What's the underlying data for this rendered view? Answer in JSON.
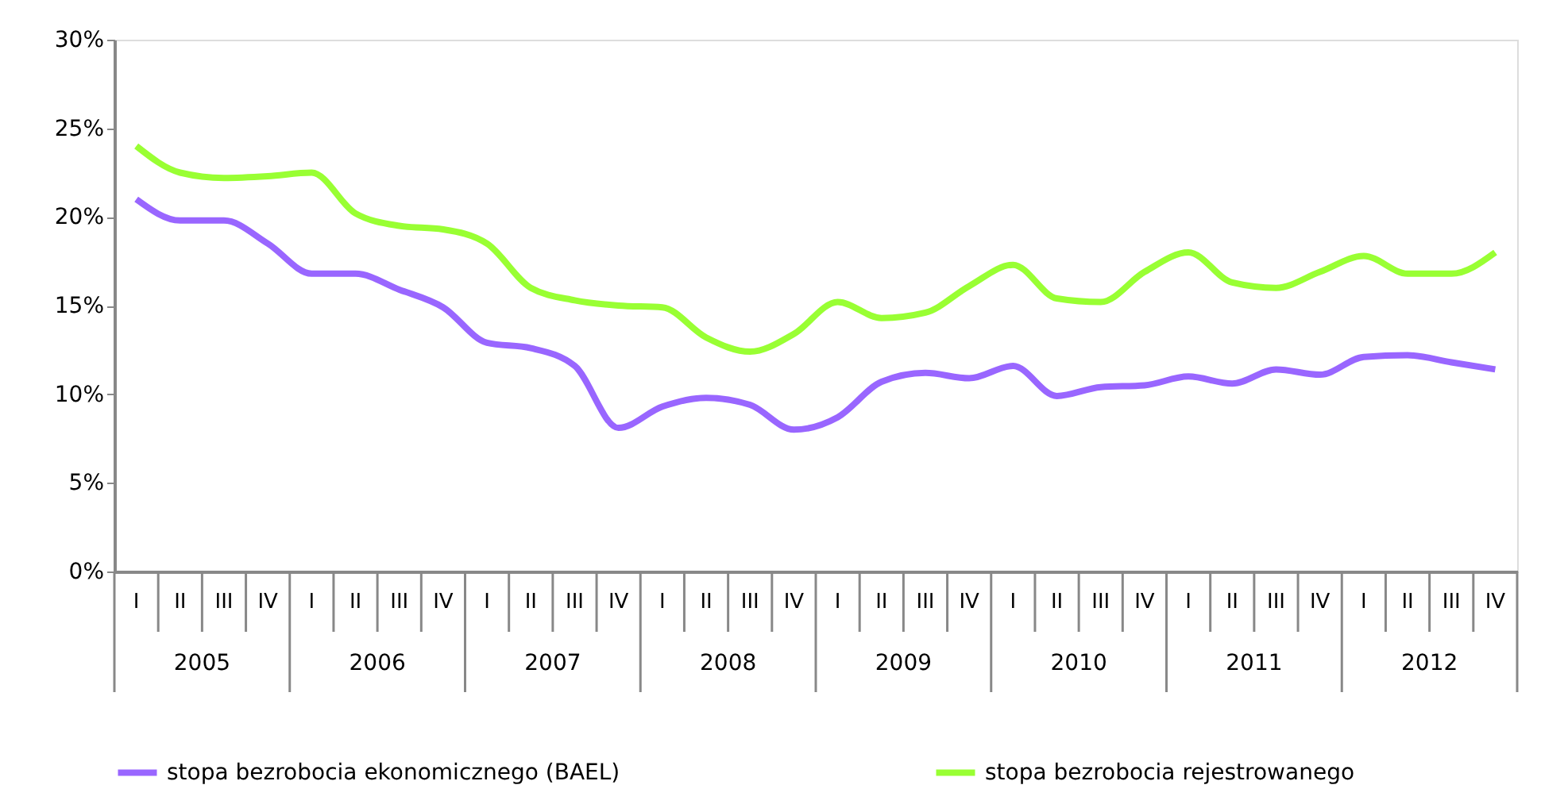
{
  "chart_data": {
    "type": "line",
    "categories": [
      "I",
      "II",
      "III",
      "IV",
      "I",
      "II",
      "III",
      "IV",
      "I",
      "II",
      "III",
      "IV",
      "I",
      "II",
      "III",
      "IV",
      "I",
      "II",
      "III",
      "IV",
      "I",
      "II",
      "III",
      "IV",
      "I",
      "II",
      "III",
      "IV",
      "I",
      "II",
      "III",
      "IV"
    ],
    "annotations": [
      "2005",
      "2006",
      "2007",
      "2008",
      "2009",
      "2010",
      "2011",
      "2012"
    ],
    "series": [
      {
        "name": "stopa bezrobocia ekonomicznego (BAEL)",
        "color": "#9966ff",
        "values": [
          21.0,
          19.8,
          19.8,
          18.5,
          16.8,
          16.8,
          15.9,
          14.9,
          12.9,
          12.6,
          11.6,
          8.1,
          9.3,
          9.8,
          9.4,
          8.0,
          8.7,
          10.7,
          11.2,
          10.9,
          11.6,
          9.9,
          10.4,
          10.5,
          11.0,
          10.6,
          11.4,
          11.1,
          12.1,
          12.2,
          11.8,
          11.4
        ]
      },
      {
        "name": "stopa bezrobocia rejestrowanego",
        "color": "#99ff33",
        "values": [
          24.0,
          22.5,
          22.2,
          22.3,
          22.5,
          20.2,
          19.5,
          19.3,
          18.5,
          16.0,
          15.3,
          15.0,
          14.9,
          13.2,
          12.4,
          13.4,
          15.2,
          14.3,
          14.6,
          16.1,
          17.3,
          15.4,
          15.2,
          16.9,
          18.0,
          16.3,
          16.0,
          16.9,
          17.8,
          16.8,
          16.8,
          18.0
        ]
      }
    ],
    "ylim": [
      0,
      30
    ],
    "yticks": [
      {
        "value": 0,
        "label": "0%"
      },
      {
        "value": 5,
        "label": "5%"
      },
      {
        "value": 10,
        "label": "10%"
      },
      {
        "value": 15,
        "label": "15%"
      },
      {
        "value": 20,
        "label": "20%"
      },
      {
        "value": 25,
        "label": "25%"
      },
      {
        "value": 30,
        "label": "30%"
      }
    ],
    "grid": false,
    "legend": "bottom",
    "marker": "none",
    "line_style": "solid"
  }
}
